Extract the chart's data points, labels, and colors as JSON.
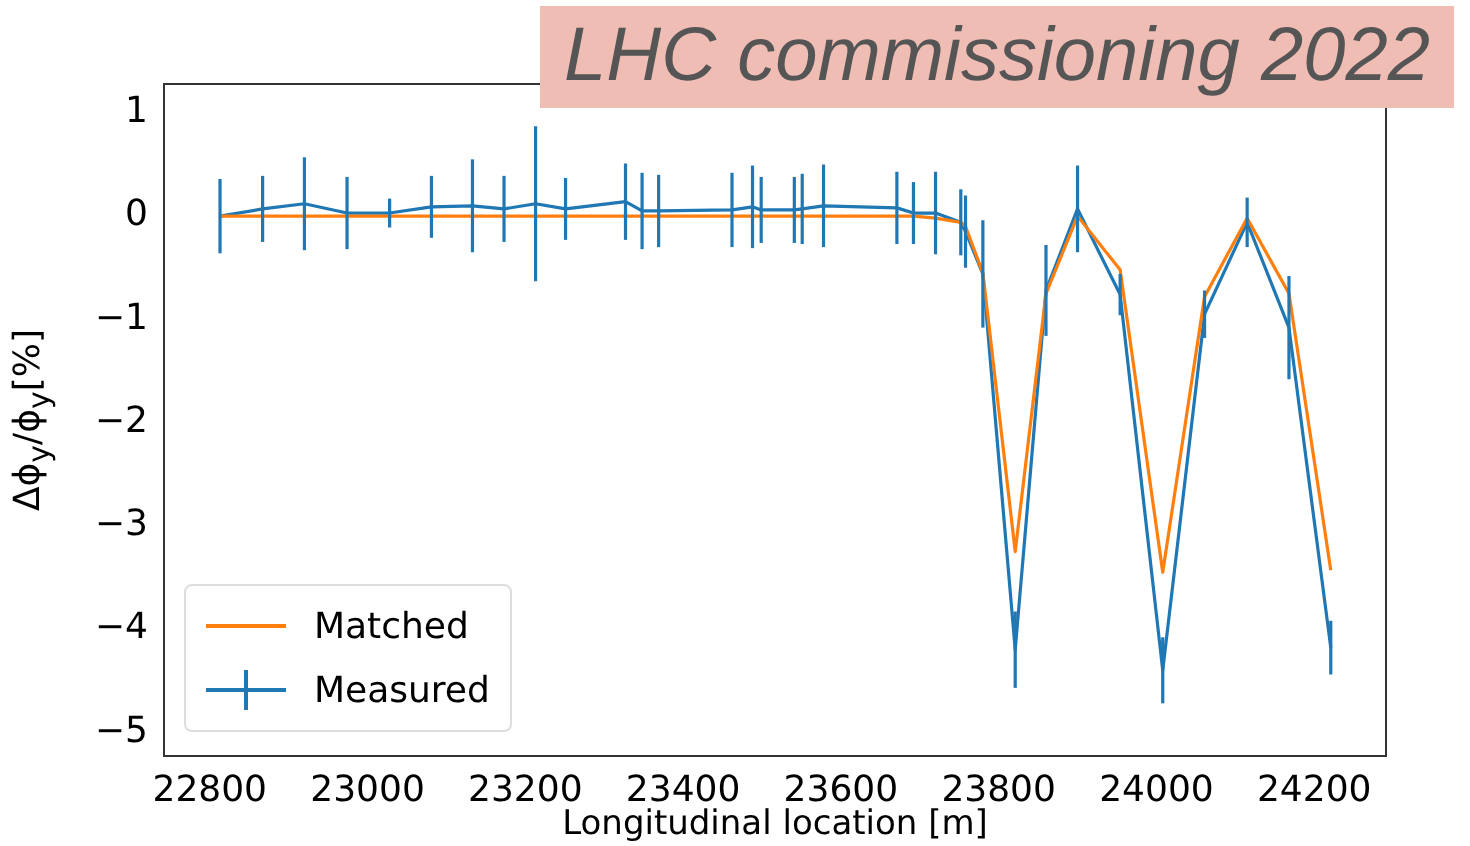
{
  "chart_data": {
    "type": "line",
    "xlabel": "Longitudinal location [m]",
    "ylabel": "Δϕ$_{y}$/ϕ$_{y}$[%]",
    "annotations": [
      "LHC commissioning 2022"
    ],
    "x": [
      22813,
      22867,
      22920,
      22974,
      23028,
      23081,
      23133,
      23173,
      23213,
      23251,
      23327,
      23348,
      23369,
      23462,
      23488,
      23499,
      23541,
      23551,
      23578,
      23671,
      23692,
      23720,
      23752,
      23758,
      23780,
      23821,
      23860,
      23900,
      23954,
      24008,
      24061,
      24115,
      24168,
      24221
    ],
    "series": [
      {
        "name": "Matched",
        "color": "#ff7f0e",
        "values": [
          0,
          0,
          0,
          0,
          0,
          0,
          0,
          0,
          0,
          0,
          0,
          0,
          0,
          0,
          0,
          0,
          0,
          0,
          0,
          0,
          0,
          -0.02,
          -0.06,
          -0.1,
          -0.55,
          -3.25,
          -0.75,
          0,
          -0.52,
          -3.45,
          -0.78,
          -0.02,
          -0.75,
          -3.43
        ]
      },
      {
        "name": "Measured",
        "color": "#1f77b4",
        "marker": "none",
        "values": [
          0,
          0.07,
          0.12,
          0.03,
          0.03,
          0.09,
          0.1,
          0.07,
          0.12,
          0.07,
          0.14,
          0.05,
          0.05,
          0.06,
          0.09,
          0.06,
          0.06,
          0.07,
          0.1,
          0.08,
          0.03,
          0.03,
          -0.06,
          -0.15,
          -0.56,
          -4.2,
          -0.72,
          0.07,
          -0.76,
          -4.4,
          -0.95,
          -0.06,
          -1.08,
          -4.18
        ],
        "errors": [
          0.36,
          0.32,
          0.45,
          0.35,
          0.14,
          0.3,
          0.45,
          0.32,
          0.75,
          0.3,
          0.37,
          0.37,
          0.35,
          0.36,
          0.4,
          0.32,
          0.32,
          0.34,
          0.4,
          0.35,
          0.3,
          0.4,
          0.32,
          0.35,
          0.52,
          0.37,
          0.44,
          0.42,
          0.2,
          0.32,
          0.23,
          0.24,
          0.5,
          0.26
        ]
      }
    ],
    "xlim": [
      22742,
      24291
    ],
    "xticks": [
      22800,
      23000,
      23200,
      23400,
      23600,
      23800,
      24000,
      24200
    ],
    "ylim": [
      -5.23,
      1.28
    ],
    "yticks": [
      1,
      0,
      {
        "value": -1,
        "label": "−1"
      },
      {
        "value": -2,
        "label": "−2"
      },
      {
        "value": -3,
        "label": "−3"
      },
      {
        "value": -4,
        "label": "−4"
      },
      {
        "value": -5,
        "label": "−5"
      }
    ],
    "grid": false,
    "legend": "bottom left",
    "marker": "none",
    "line_style": "solid"
  }
}
